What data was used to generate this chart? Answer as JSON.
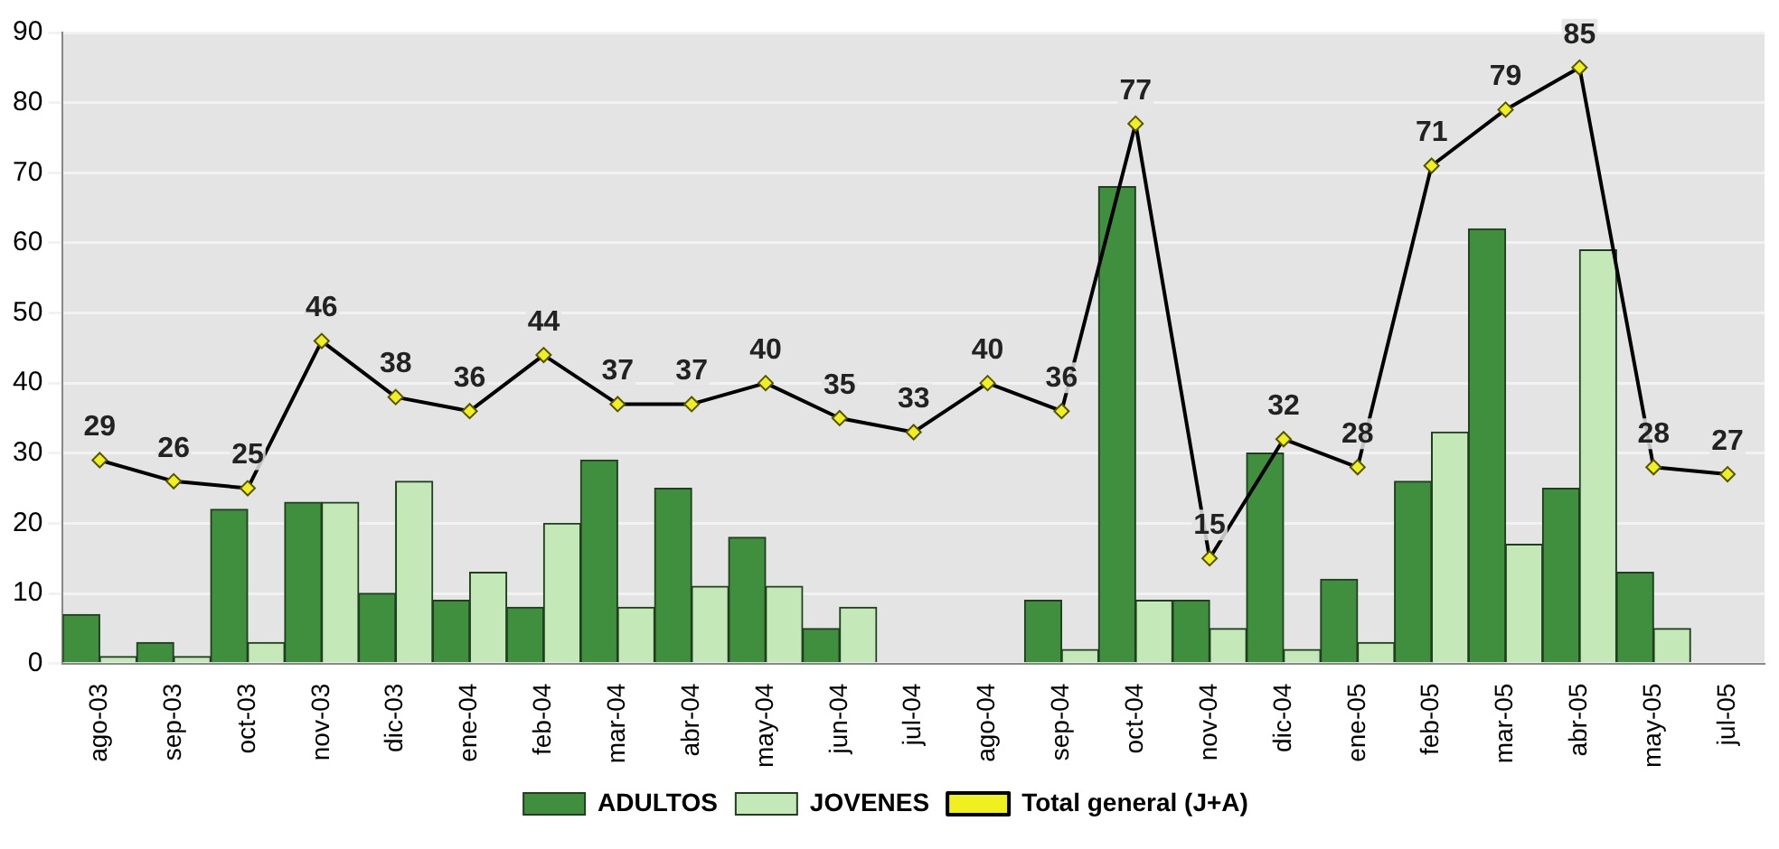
{
  "chart_data": {
    "type": "bar",
    "categories": [
      "ago-03",
      "sep-03",
      "oct-03",
      "nov-03",
      "dic-03",
      "ene-04",
      "feb-04",
      "mar-04",
      "abr-04",
      "may-04",
      "jun-04",
      "jul-04",
      "ago-04",
      "sep-04",
      "oct-04",
      "nov-04",
      "dic-04",
      "ene-05",
      "feb-05",
      "mar-05",
      "abr-05",
      "may-05",
      "jul-05"
    ],
    "series": [
      {
        "name": "ADULTOS",
        "color": "#3f8f3f",
        "values": [
          7,
          3,
          22,
          23,
          10,
          9,
          8,
          29,
          25,
          18,
          5,
          null,
          null,
          9,
          68,
          9,
          30,
          12,
          26,
          62,
          25,
          13,
          null
        ]
      },
      {
        "name": "JOVENES",
        "color": "#c5e8b8",
        "values": [
          1,
          1,
          3,
          23,
          26,
          13,
          20,
          8,
          11,
          11,
          8,
          null,
          null,
          2,
          9,
          5,
          2,
          3,
          33,
          17,
          59,
          5,
          null
        ]
      },
      {
        "name": "Total general (J+A)",
        "type": "line",
        "color": "#000000",
        "marker": "diamond",
        "values": [
          29,
          26,
          25,
          46,
          38,
          36,
          44,
          37,
          37,
          40,
          35,
          33,
          40,
          36,
          77,
          15,
          32,
          28,
          71,
          79,
          85,
          28,
          27
        ],
        "value_labels": [
          "29",
          "26",
          "25",
          "46",
          "38",
          "36",
          "44",
          "37",
          "37",
          "40",
          "35",
          "33",
          "40",
          "36",
          "77",
          "15",
          "32",
          "28",
          "71",
          "79",
          "85",
          "28",
          "27"
        ]
      }
    ],
    "ylim": [
      0,
      90
    ],
    "yticks": [
      0,
      10,
      20,
      30,
      40,
      50,
      60,
      70,
      80,
      90
    ],
    "grid": "y",
    "legend": "bottom"
  }
}
